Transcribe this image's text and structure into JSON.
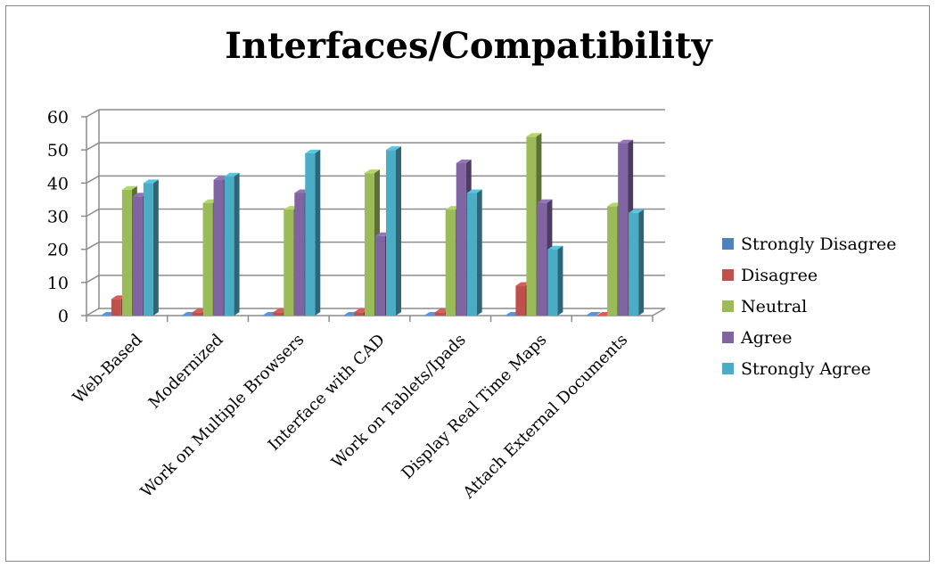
{
  "chart_data": {
    "type": "bar",
    "title": "Interfaces/Compatibility",
    "categories": [
      "Web-Based",
      "Modernized",
      "Work on Multiple Browsers",
      "Interface with CAD",
      "Work on Tablets/Ipads",
      "Display Real Time Maps",
      "Attach External Documents"
    ],
    "ylim": [
      0,
      60
    ],
    "yticks": [
      0,
      10,
      20,
      30,
      40,
      50,
      60
    ],
    "grid": true,
    "legend_position": "right",
    "series": [
      {
        "name": "Strongly Disagree",
        "color": "#4f81bd",
        "values": [
          0,
          0,
          0,
          0,
          0,
          0,
          0
        ]
      },
      {
        "name": "Disagree",
        "color": "#c0504d",
        "values": [
          5,
          1,
          1,
          1,
          1,
          9,
          0
        ]
      },
      {
        "name": "Neutral",
        "color": "#9bbb59",
        "values": [
          38,
          34,
          32,
          43,
          32,
          54,
          33
        ]
      },
      {
        "name": "Agree",
        "color": "#8064a2",
        "values": [
          36,
          41,
          37,
          24,
          46,
          34,
          52
        ]
      },
      {
        "name": "Strongly Agree",
        "color": "#4bacc6",
        "values": [
          40,
          42,
          49,
          50,
          37,
          20,
          31
        ]
      }
    ]
  }
}
